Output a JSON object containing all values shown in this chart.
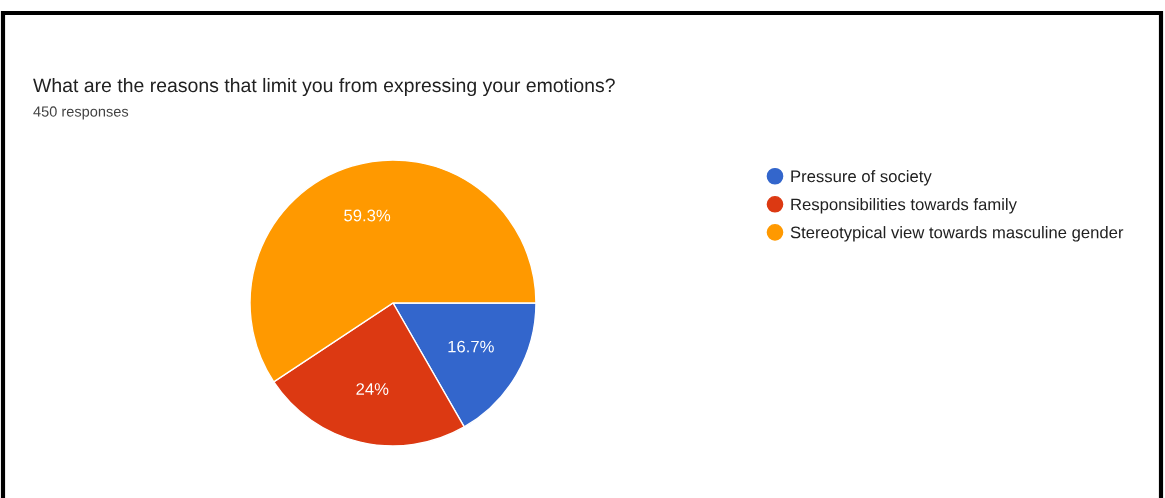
{
  "chart_data": {
    "type": "pie",
    "title": "What are the reasons that limit you from expressing your emotions?",
    "subtitle": "450 responses",
    "categories": [
      "Pressure of society",
      "Responsibilities towards family",
      "Stereotypical view towards masculine gender"
    ],
    "values": [
      16.7,
      24,
      59.3
    ],
    "value_labels": [
      "16.7%",
      "24%",
      "59.3%"
    ],
    "colors": [
      "#3366cc",
      "#dc3912",
      "#ff9900"
    ],
    "legend": "top right"
  }
}
